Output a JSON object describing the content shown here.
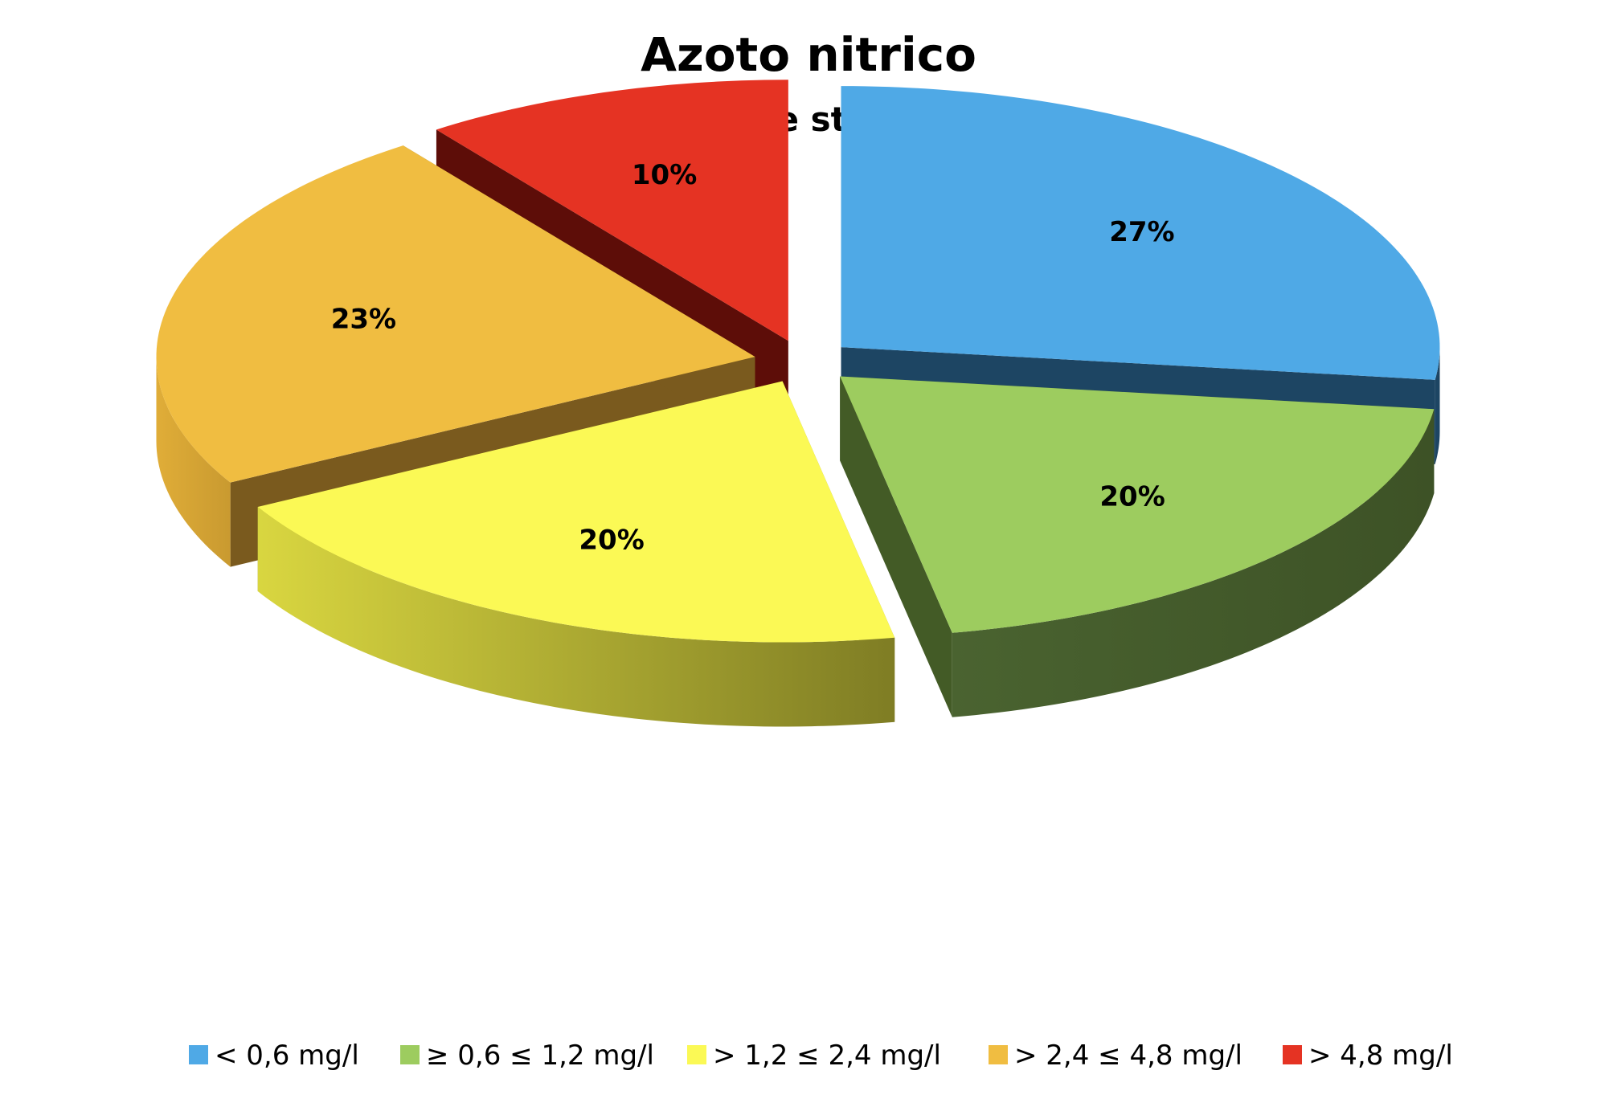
{
  "chart_data": {
    "type": "pie",
    "title": "Azoto nitrico",
    "subtitle": "(tutte le stazioni)",
    "categories": [
      "< 0,6 mg/l",
      "≥ 0,6 ≤ 1,2 mg/l",
      "> 1,2  ≤ 2,4 mg/l",
      "> 2,4  ≤ 4,8 mg/l",
      "> 4,8 mg/l"
    ],
    "values": [
      27,
      20,
      20,
      23,
      10
    ],
    "data_labels": [
      "27%",
      "20%",
      "20%",
      "23%",
      "10%"
    ],
    "colors": [
      "#4fa9e6",
      "#9dcc5f",
      "#fbf955",
      "#f0bd41",
      "#e53323"
    ],
    "side_colors": [
      "#1d4563",
      "#435b26",
      "#8f8d2a",
      "#7a5a1e",
      "#5d0d08"
    ],
    "legend_position": "bottom",
    "exploded": true,
    "three_d": true
  }
}
